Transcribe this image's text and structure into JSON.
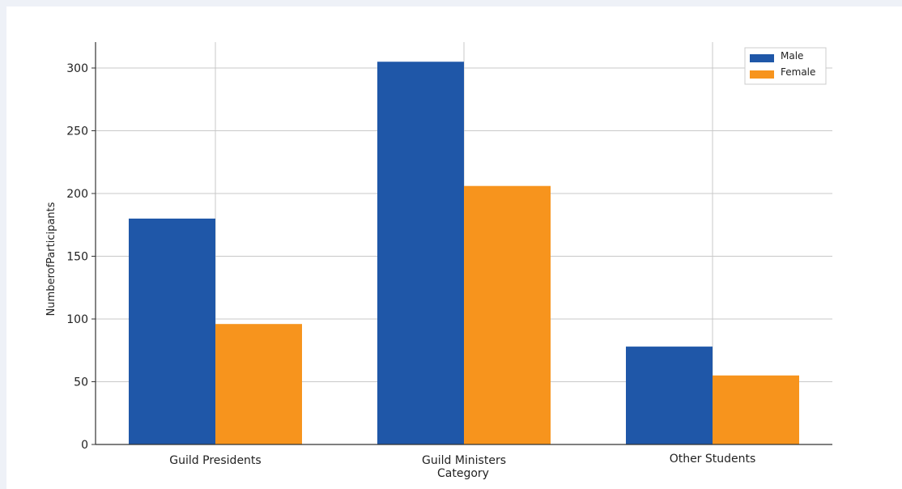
{
  "chart_data": {
    "type": "bar",
    "categories": [
      "Guild Presidents",
      "Guild Ministers",
      "Other Students"
    ],
    "series": [
      {
        "name": "Male",
        "color": "#1f57a8",
        "values": [
          180,
          305,
          78
        ]
      },
      {
        "name": "Female",
        "color": "#f7941d",
        "values": [
          96,
          206,
          55
        ]
      }
    ],
    "xlabel": "Category",
    "ylabel": "NumberofParticipants",
    "ylim": [
      0,
      320
    ],
    "yticks": [
      0,
      50,
      100,
      150,
      200,
      250,
      300
    ],
    "grid": true,
    "legend": "top-right"
  }
}
